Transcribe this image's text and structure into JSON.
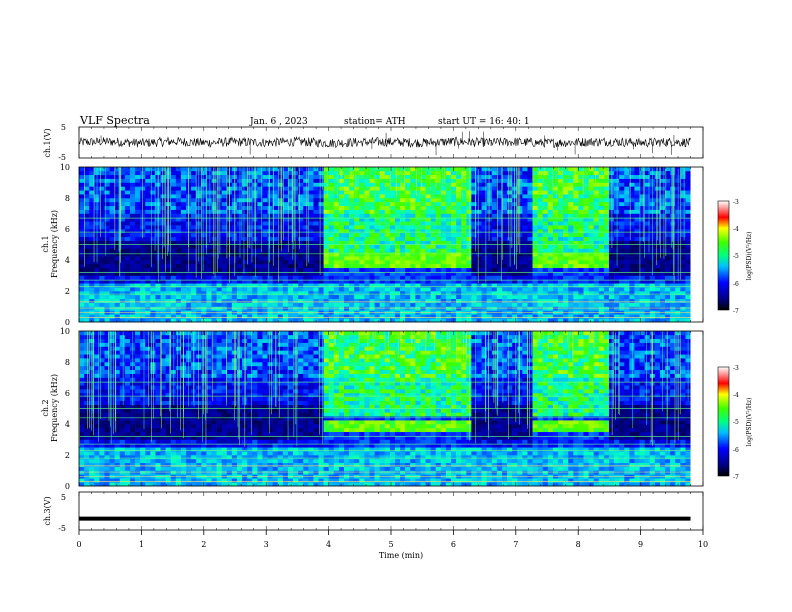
{
  "header": {
    "title": "VLF  Spectra",
    "date": "Jan. 6  , 2023",
    "station": "station= ATH",
    "start_ut": "start  UT  =   16: 40: 1"
  },
  "chart_data": [
    {
      "type": "line",
      "panel": "ch1-waveform",
      "ylabel": "ch.1(V)",
      "ylim": [
        -5,
        5
      ],
      "yticks": [
        "5",
        "-5"
      ],
      "x": [
        0.0,
        0.5,
        1.0,
        1.5,
        2.0,
        2.5,
        3.0,
        3.5,
        4.0,
        4.5,
        5.0,
        5.5,
        6.0,
        6.5,
        7.0,
        7.5,
        8.0,
        8.5,
        9.0,
        9.5,
        9.8
      ],
      "values": [
        0.1,
        0.3,
        -0.2,
        0.4,
        -0.1,
        0.2,
        0.0,
        0.3,
        -0.2,
        0.1,
        0.2,
        -0.1,
        0.3,
        0.0,
        0.2,
        -0.2,
        0.1,
        0.3,
        -0.1,
        0.2,
        0.0
      ],
      "envelope": [
        -1.5,
        1.5
      ]
    },
    {
      "type": "heatmap",
      "panel": "ch1-spectrogram",
      "ylabel": "ch.1\nFrequency (kHz)",
      "ylabel_line1": "ch.1",
      "ylabel_line2": "Frequency (kHz)",
      "ylim": [
        0,
        10
      ],
      "yticks": [
        "0",
        "2",
        "4",
        "6",
        "8",
        "10"
      ],
      "colorbar": {
        "label": "log(PSD)(V²/Hz)",
        "range": [
          -7,
          -3
        ],
        "ticks": [
          "-3",
          "-4",
          "-5",
          "-6",
          "-7"
        ]
      },
      "noisy_intervals_min": [
        [
          0.0,
          3.9
        ],
        [
          6.25,
          7.25
        ],
        [
          8.5,
          9.8
        ]
      ],
      "quiet_intervals_min": [
        [
          3.9,
          6.25
        ],
        [
          7.25,
          8.5
        ]
      ],
      "emission_band_khz": [
        3.5,
        4.5
      ]
    },
    {
      "type": "heatmap",
      "panel": "ch2-spectrogram",
      "ylabel": "ch.2\nFrequency (kHz)",
      "ylabel_line1": "ch.2",
      "ylabel_line2": "Frequency (kHz)",
      "ylim": [
        0,
        10
      ],
      "yticks": [
        "0",
        "2",
        "4",
        "6",
        "8",
        "10"
      ],
      "colorbar": {
        "label": "log(PSD)(V²/Hz)",
        "range": [
          -7,
          -3
        ],
        "ticks": [
          "-3",
          "-4",
          "-5",
          "-6",
          "-7"
        ]
      },
      "noisy_intervals_min": [
        [
          0.0,
          3.9
        ],
        [
          6.25,
          7.25
        ],
        [
          8.5,
          9.8
        ]
      ],
      "quiet_intervals_min": [
        [
          3.9,
          6.25
        ],
        [
          7.25,
          8.5
        ]
      ],
      "emission_band_khz": [
        3.6,
        4.2
      ]
    },
    {
      "type": "line",
      "panel": "ch3-waveform",
      "ylabel": "ch.3(V)",
      "ylim": [
        -5,
        5
      ],
      "yticks": [
        "5",
        "-5"
      ],
      "x": [
        0.0,
        9.8
      ],
      "values": [
        -2.0,
        -2.0
      ]
    }
  ],
  "xaxis": {
    "label": "Time  (min)",
    "range": [
      0,
      10
    ],
    "ticks": [
      "0",
      "1",
      "2",
      "3",
      "4",
      "5",
      "6",
      "7",
      "8",
      "9",
      "10"
    ]
  },
  "colors": {
    "background": "#000080",
    "low": "#0000cc",
    "mid": "#00ffff",
    "high": "#00ff40",
    "peak": "#ffff00"
  }
}
